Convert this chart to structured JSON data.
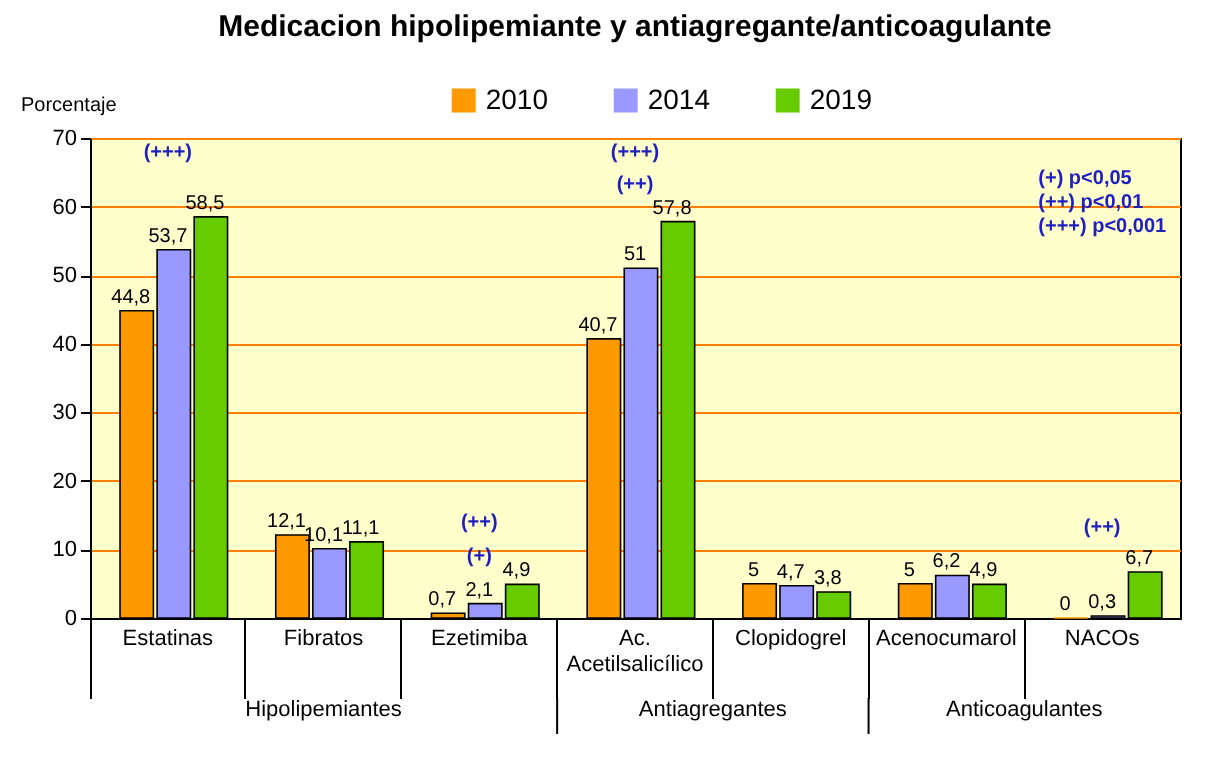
{
  "chart_data": {
    "type": "bar",
    "title": "Medicacion hipolipemiante  y  antiagregante/anticoagulante",
    "ylabel": "Porcentaje",
    "categories": [
      "Estatinas",
      "Fibratos",
      "Ezetimiba",
      "Ac. Acetilsalicílico",
      "Clopidogrel",
      "Acenocumarol",
      "NACOs"
    ],
    "series": [
      {
        "name": "2010",
        "color": "#ff9900",
        "values": [
          44.8,
          12.1,
          0.7,
          40.7,
          5,
          5,
          0
        ],
        "value_labels": [
          "44,8",
          "12,1",
          "0,7",
          "40,7",
          "5",
          "5",
          "0"
        ]
      },
      {
        "name": "2014",
        "color": "#9999ff",
        "values": [
          53.7,
          10.1,
          2.1,
          51,
          4.7,
          6.2,
          0.3
        ],
        "value_labels": [
          "53,7",
          "10,1",
          "2,1",
          "51",
          "4,7",
          "6,2",
          "0,3"
        ]
      },
      {
        "name": "2019",
        "color": "#66cc00",
        "values": [
          58.5,
          11.1,
          4.9,
          57.8,
          3.8,
          4.9,
          6.7
        ],
        "value_labels": [
          "58,5",
          "11,1",
          "4,9",
          "57,8",
          "3,8",
          "4,9",
          "6,7"
        ]
      }
    ],
    "ylim": [
      0,
      70
    ],
    "yticks": [
      0,
      10,
      20,
      30,
      40,
      50,
      60,
      70
    ],
    "grid": "y",
    "legend": "top",
    "annotations": [
      "Hipolipemiantes",
      "Antiagregantes",
      "Anticoagulantes",
      "(+)    p<0,05",
      "(++)  p<0,01",
      "(+++) p<0,001",
      "(+++)",
      "(+++)",
      "(++)",
      "(++)",
      "(+)",
      "(++)"
    ]
  }
}
